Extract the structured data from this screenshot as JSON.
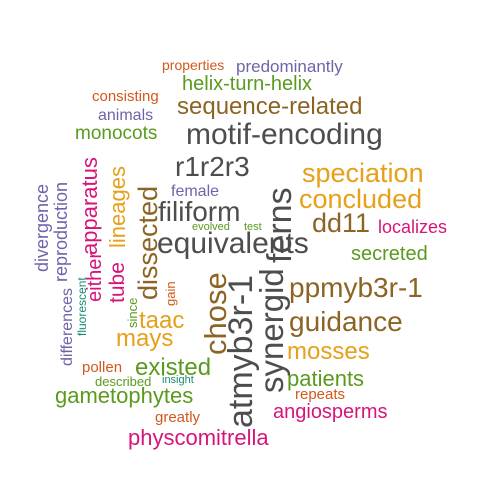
{
  "colors": {
    "gray": "#4d4d4d",
    "brown": "#8c6423",
    "gold": "#e6a019",
    "green": "#5a9a1e",
    "magenta": "#d6157a",
    "orange": "#d2581c",
    "purple": "#6e64aa",
    "teal": "#1b8c74"
  },
  "words": [
    {
      "text": "properties"
    },
    {
      "text": "predominantly"
    },
    {
      "text": "helix-turn-helix"
    },
    {
      "text": "consisting"
    },
    {
      "text": "sequence-related"
    },
    {
      "text": "animals"
    },
    {
      "text": "monocots"
    },
    {
      "text": "motif-encoding"
    },
    {
      "text": "r1r2r3"
    },
    {
      "text": "speciation"
    },
    {
      "text": "concluded"
    },
    {
      "text": "female"
    },
    {
      "text": "filiform"
    },
    {
      "text": "dd11"
    },
    {
      "text": "localizes"
    },
    {
      "text": "evolved"
    },
    {
      "text": "test"
    },
    {
      "text": "equivalents"
    },
    {
      "text": "secreted"
    },
    {
      "text": "ppmyb3r-1"
    },
    {
      "text": "guidance"
    },
    {
      "text": "taac"
    },
    {
      "text": "mays"
    },
    {
      "text": "mosses"
    },
    {
      "text": "pollen"
    },
    {
      "text": "existed"
    },
    {
      "text": "patients"
    },
    {
      "text": "described"
    },
    {
      "text": "insight"
    },
    {
      "text": "gametophytes"
    },
    {
      "text": "repeats"
    },
    {
      "text": "angiosperms"
    },
    {
      "text": "greatly"
    },
    {
      "text": "physcomitrella"
    },
    {
      "text": "divergence"
    },
    {
      "text": "reproduction"
    },
    {
      "text": "differences"
    },
    {
      "text": "fluorescent"
    },
    {
      "text": "apparatus"
    },
    {
      "text": "either"
    },
    {
      "text": "lineages"
    },
    {
      "text": "tube"
    },
    {
      "text": "since"
    },
    {
      "text": "dissected"
    },
    {
      "text": "gain"
    },
    {
      "text": "chose"
    },
    {
      "text": "atmyb3r-1"
    },
    {
      "text": "synergid"
    },
    {
      "text": "ferns"
    }
  ]
}
